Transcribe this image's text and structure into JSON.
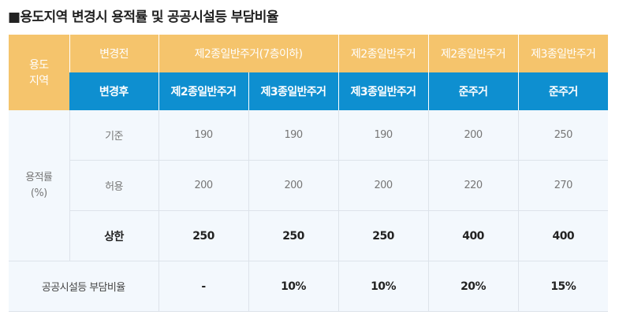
{
  "title": "■용도지역 변경시 용적률 및 공공시설등 부담비율",
  "header": {
    "zone_label_line1": "용도",
    "zone_label_line2": "지역",
    "before_label": "변경전",
    "after_label": "변경후",
    "before": [
      "제2종일반주거(7층이하)",
      "제2종일반주거",
      "제2종일반주거",
      "제3종일반주거"
    ],
    "after": [
      "제2종일반주거",
      "제3종일반주거",
      "제3종일반주거",
      "준주거",
      "준주거"
    ]
  },
  "far": {
    "label_line1": "용적률",
    "label_line2": "(%)",
    "rows": [
      {
        "label": "기준",
        "values": [
          "190",
          "190",
          "190",
          "200",
          "250"
        ]
      },
      {
        "label": "허용",
        "values": [
          "200",
          "200",
          "200",
          "220",
          "270"
        ]
      },
      {
        "label": "상한",
        "values": [
          "250",
          "250",
          "250",
          "400",
          "400"
        ]
      }
    ]
  },
  "burden": {
    "label": "공공시설등 부담비율",
    "values": [
      "-",
      "10%",
      "10%",
      "20%",
      "15%"
    ]
  }
}
